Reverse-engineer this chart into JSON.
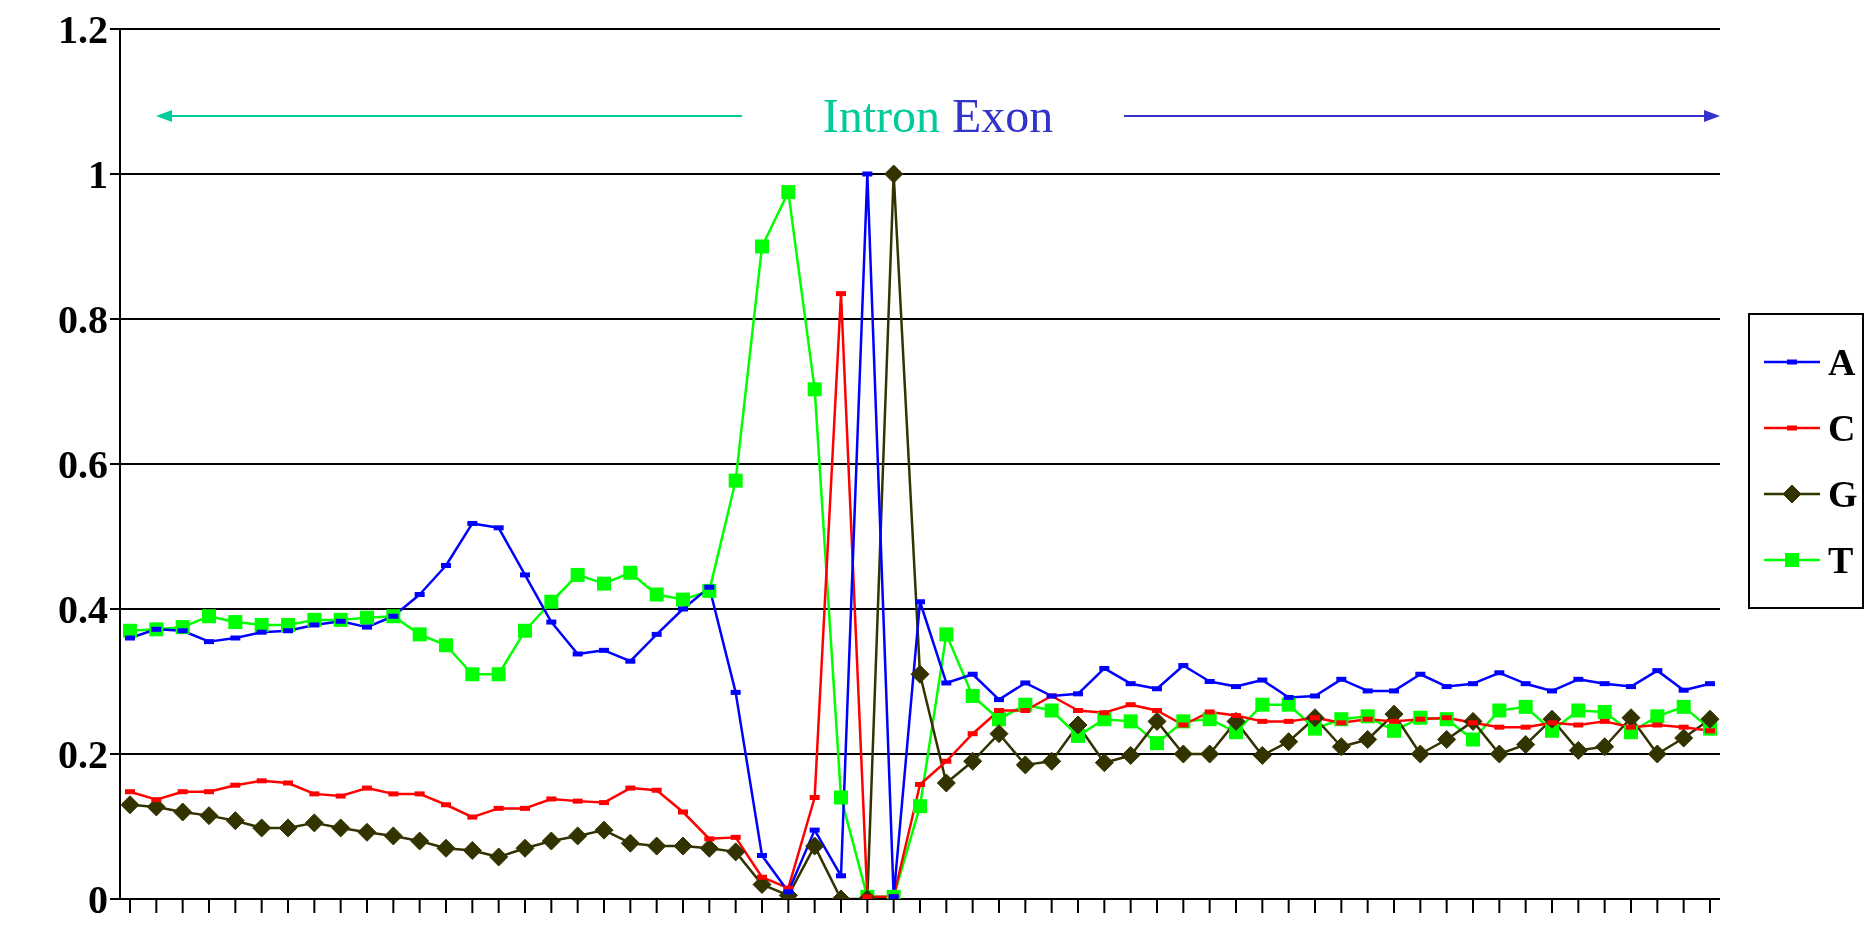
{
  "chart_data": {
    "type": "line",
    "categories": [
      null,
      null,
      null,
      null,
      null,
      null,
      null,
      null,
      null,
      null,
      null,
      null,
      null,
      null,
      null,
      null,
      null,
      null,
      null,
      null,
      null,
      null,
      null,
      null,
      null,
      null,
      null,
      null,
      null,
      null,
      null,
      null,
      null,
      null,
      null,
      null,
      null,
      null,
      null,
      null,
      null,
      null,
      null,
      null,
      null,
      null,
      null,
      null,
      null,
      null,
      null,
      null,
      null,
      null,
      null,
      null,
      null,
      null,
      null,
      null,
      null
    ],
    "series": [
      {
        "name": "A",
        "color": "#0000ff",
        "marker": "square",
        "values": [
          0.36,
          0.372,
          0.37,
          0.355,
          0.36,
          0.368,
          0.37,
          0.378,
          0.383,
          0.375,
          0.39,
          0.42,
          0.46,
          0.518,
          0.512,
          0.447,
          0.382,
          0.338,
          0.343,
          0.328,
          0.365,
          0.4,
          0.43,
          0.285,
          0.06,
          0.01,
          0.095,
          0.032,
          1.0,
          0.003,
          0.41,
          0.298,
          0.31,
          0.275,
          0.298,
          0.28,
          0.283,
          0.318,
          0.297,
          0.29,
          0.322,
          0.3,
          0.293,
          0.302,
          0.278,
          0.28,
          0.303,
          0.287,
          0.287,
          0.31,
          0.293,
          0.297,
          0.312,
          0.297,
          0.287,
          0.303,
          0.297,
          0.293,
          0.315,
          0.288,
          0.297
        ]
      },
      {
        "name": "C",
        "color": "#ff0000",
        "marker": "square",
        "values": [
          0.148,
          0.137,
          0.148,
          0.148,
          0.157,
          0.163,
          0.16,
          0.145,
          0.142,
          0.153,
          0.145,
          0.145,
          0.13,
          0.113,
          0.125,
          0.125,
          0.138,
          0.135,
          0.133,
          0.153,
          0.15,
          0.12,
          0.083,
          0.085,
          0.03,
          0.015,
          0.14,
          0.835,
          0.003,
          0.003,
          0.158,
          0.19,
          0.228,
          0.26,
          0.26,
          0.28,
          0.26,
          0.257,
          0.268,
          0.26,
          0.24,
          0.258,
          0.253,
          0.245,
          0.245,
          0.25,
          0.243,
          0.248,
          0.245,
          0.248,
          0.25,
          0.243,
          0.237,
          0.237,
          0.243,
          0.24,
          0.245,
          0.237,
          0.24,
          0.237,
          0.232
        ]
      },
      {
        "name": "G",
        "color": "#333300",
        "marker": "diamond",
        "values": [
          0.13,
          0.127,
          0.12,
          0.115,
          0.108,
          0.098,
          0.098,
          0.105,
          0.098,
          0.092,
          0.087,
          0.08,
          0.07,
          0.067,
          0.058,
          0.07,
          0.08,
          0.087,
          0.095,
          0.077,
          0.073,
          0.073,
          0.07,
          0.065,
          0.02,
          0.005,
          0.073,
          0.0,
          0.0,
          1.0,
          0.31,
          0.16,
          0.19,
          0.228,
          0.185,
          0.19,
          0.24,
          0.188,
          0.198,
          0.245,
          0.2,
          0.2,
          0.245,
          0.198,
          0.217,
          0.25,
          0.21,
          0.22,
          0.255,
          0.2,
          0.22,
          0.245,
          0.2,
          0.213,
          0.248,
          0.205,
          0.21,
          0.25,
          0.2,
          0.222,
          0.248
        ]
      },
      {
        "name": "T",
        "color": "#00ff00",
        "marker": "square",
        "values": [
          0.37,
          0.372,
          0.375,
          0.39,
          0.382,
          0.378,
          0.378,
          0.385,
          0.385,
          0.388,
          0.39,
          0.365,
          0.35,
          0.31,
          0.31,
          0.37,
          0.41,
          0.447,
          0.435,
          0.45,
          0.42,
          0.413,
          0.425,
          0.577,
          0.9,
          0.975,
          0.703,
          0.14,
          0.003,
          0.003,
          0.128,
          0.365,
          0.28,
          0.248,
          0.268,
          0.26,
          0.225,
          0.248,
          0.245,
          0.215,
          0.245,
          0.248,
          0.23,
          0.268,
          0.268,
          0.235,
          0.248,
          0.252,
          0.232,
          0.25,
          0.248,
          0.22,
          0.26,
          0.265,
          0.232,
          0.26,
          0.258,
          0.23,
          0.252,
          0.265,
          0.235
        ]
      }
    ],
    "ylim": [
      0,
      1.2
    ],
    "yticks": [
      0,
      0.2,
      0.4,
      0.6,
      0.8,
      1,
      1.2
    ],
    "grid": "y",
    "legend": "right",
    "tick_labels": "y",
    "annotations": [
      "Intron",
      "Exon"
    ]
  }
}
